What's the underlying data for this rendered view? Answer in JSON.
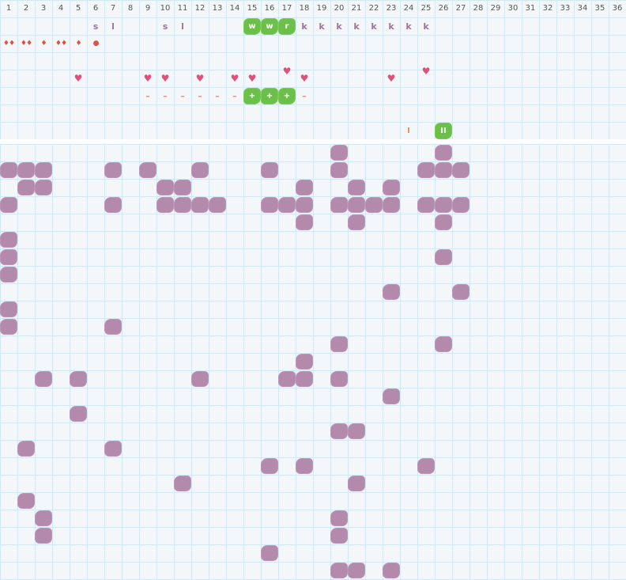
{
  "columns": [
    "1",
    "2",
    "3",
    "4",
    "5",
    "6",
    "7",
    "8",
    "9",
    "10",
    "11",
    "12",
    "13",
    "14",
    "15",
    "16",
    "17",
    "18",
    "19",
    "20",
    "21",
    "22",
    "23",
    "24",
    "25",
    "26",
    "27",
    "28",
    "29",
    "30",
    "31",
    "32",
    "33",
    "34",
    "35",
    "36"
  ],
  "colors": {
    "grid_line": "#d3e8f3",
    "background": "#f3f7f9",
    "blob": "#b084a8",
    "green": "#6cc04a",
    "heart": "#e0507a",
    "drop": "#e0504a",
    "dash": "#f08a5a"
  },
  "top_markers": [
    {
      "row": 1,
      "col": 6,
      "kind": "letter",
      "label": "s"
    },
    {
      "row": 1,
      "col": 7,
      "kind": "letter",
      "label": "l"
    },
    {
      "row": 1,
      "col": 10,
      "kind": "letter",
      "label": "s"
    },
    {
      "row": 1,
      "col": 11,
      "kind": "letter",
      "label": "l"
    },
    {
      "row": 1,
      "col": 15,
      "kind": "green",
      "label": "w"
    },
    {
      "row": 1,
      "col": 16,
      "kind": "green",
      "label": "w"
    },
    {
      "row": 1,
      "col": 17,
      "kind": "green",
      "label": "r"
    },
    {
      "row": 1,
      "col": 18,
      "kind": "letter",
      "label": "k"
    },
    {
      "row": 1,
      "col": 19,
      "kind": "letter",
      "label": "k"
    },
    {
      "row": 1,
      "col": 20,
      "kind": "letter",
      "label": "k"
    },
    {
      "row": 1,
      "col": 21,
      "kind": "letter",
      "label": "k"
    },
    {
      "row": 1,
      "col": 22,
      "kind": "letter",
      "label": "k"
    },
    {
      "row": 1,
      "col": 23,
      "kind": "letter",
      "label": "k"
    },
    {
      "row": 1,
      "col": 24,
      "kind": "letter",
      "label": "k"
    },
    {
      "row": 1,
      "col": 25,
      "kind": "letter",
      "label": "k"
    },
    {
      "row": 2,
      "col": 1,
      "kind": "drop",
      "label": "♦♦"
    },
    {
      "row": 2,
      "col": 2,
      "kind": "drop",
      "label": "♦♦"
    },
    {
      "row": 2,
      "col": 3,
      "kind": "drop",
      "label": "♦"
    },
    {
      "row": 2,
      "col": 4,
      "kind": "drop",
      "label": "♦♦"
    },
    {
      "row": 2,
      "col": 5,
      "kind": "drop",
      "label": "♦"
    },
    {
      "row": 2,
      "col": 6,
      "kind": "drop",
      "label": "●"
    },
    {
      "row": 4,
      "col": 5,
      "kind": "heart",
      "label": "♥"
    },
    {
      "row": 4,
      "col": 9,
      "kind": "heart",
      "label": "♥"
    },
    {
      "row": 4,
      "col": 10,
      "kind": "heart",
      "label": "♥"
    },
    {
      "row": 4,
      "col": 12,
      "kind": "heart",
      "label": "♥"
    },
    {
      "row": 4,
      "col": 14,
      "kind": "heart",
      "label": "♥"
    },
    {
      "row": 4,
      "col": 15,
      "kind": "heart",
      "label": "♥"
    },
    {
      "row": 3.6,
      "col": 17,
      "kind": "heart",
      "label": "♥"
    },
    {
      "row": 4,
      "col": 18,
      "kind": "heart",
      "label": "♥"
    },
    {
      "row": 4,
      "col": 23,
      "kind": "heart",
      "label": "♥"
    },
    {
      "row": 3.6,
      "col": 25,
      "kind": "heart",
      "label": "♥"
    },
    {
      "row": 5,
      "col": 9,
      "kind": "dash",
      "label": "–"
    },
    {
      "row": 5,
      "col": 10,
      "kind": "dash",
      "label": "–"
    },
    {
      "row": 5,
      "col": 11,
      "kind": "dash",
      "label": "–"
    },
    {
      "row": 5,
      "col": 12,
      "kind": "dash",
      "label": "–"
    },
    {
      "row": 5,
      "col": 13,
      "kind": "dash",
      "label": "–"
    },
    {
      "row": 5,
      "col": 14,
      "kind": "dash",
      "label": "–"
    },
    {
      "row": 5,
      "col": 15,
      "kind": "green",
      "label": "+"
    },
    {
      "row": 5,
      "col": 16,
      "kind": "green",
      "label": "+"
    },
    {
      "row": 5,
      "col": 17,
      "kind": "green",
      "label": "+"
    },
    {
      "row": 5,
      "col": 18,
      "kind": "dash",
      "label": "–"
    },
    {
      "row": 7,
      "col": 24,
      "kind": "bar",
      "label": "I"
    },
    {
      "row": 7,
      "col": 26,
      "kind": "green",
      "label": "II"
    }
  ],
  "blob_rows": [
    [
      20,
      26
    ],
    [
      1,
      2,
      3,
      7,
      9,
      12,
      16,
      20,
      25,
      26,
      27
    ],
    [
      2,
      3,
      10,
      11,
      18,
      21,
      23
    ],
    [
      1,
      7,
      10,
      11,
      12,
      13,
      16,
      17,
      18,
      20,
      21,
      22,
      23,
      25,
      26,
      27
    ],
    [
      18,
      21,
      26
    ],
    [
      1
    ],
    [
      1,
      26
    ],
    [
      1
    ],
    [
      23,
      27
    ],
    [
      1
    ],
    [
      1,
      7
    ],
    [
      20,
      26
    ],
    [
      18
    ],
    [
      3,
      5,
      12,
      17,
      18,
      20
    ],
    [
      23
    ],
    [
      5
    ],
    [
      20,
      21
    ],
    [
      2,
      7
    ],
    [
      16,
      18,
      25
    ],
    [
      11,
      21
    ],
    [
      2
    ],
    [
      3,
      20
    ],
    [
      3,
      20
    ],
    [
      16
    ],
    [
      20,
      21,
      23
    ]
  ]
}
